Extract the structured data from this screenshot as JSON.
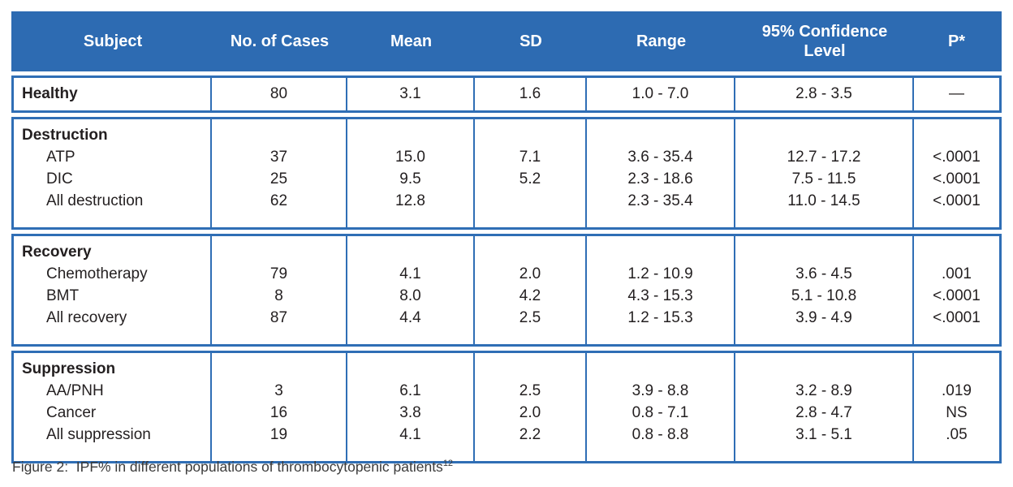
{
  "colors": {
    "header_bg": "#2d6bb2",
    "border_blue": "#2f6eb5",
    "body_text": "#231f20",
    "header_text": "#ffffff"
  },
  "table": {
    "headers": [
      "Subject",
      "No. of Cases",
      "Mean",
      "SD",
      "Range",
      "95% Confidence Level",
      "P*"
    ],
    "sections": [
      {
        "name": "healthy",
        "rows": [
          {
            "label": "Healthy",
            "cases": "80",
            "mean": "3.1",
            "sd": "1.6",
            "range": "1.0 - 7.0",
            "ci": "2.8 - 3.5",
            "p": "—"
          }
        ]
      },
      {
        "name": "destruction",
        "group": "Destruction",
        "rows": [
          {
            "label": "ATP",
            "cases": "37",
            "mean": "15.0",
            "sd": "7.1",
            "range": "3.6 - 35.4",
            "ci": "12.7 - 17.2",
            "p": "<.0001"
          },
          {
            "label": "DIC",
            "cases": "25",
            "mean": "9.5",
            "sd": "5.2",
            "range": "2.3 - 18.6",
            "ci": "7.5 - 11.5",
            "p": "<.0001"
          },
          {
            "label": "All destruction",
            "cases": "62",
            "mean": "12.8",
            "sd": "",
            "range": "2.3 - 35.4",
            "ci": "11.0 - 14.5",
            "p": "<.0001"
          }
        ]
      },
      {
        "name": "recovery",
        "group": "Recovery",
        "rows": [
          {
            "label": "Chemotherapy",
            "cases": "79",
            "mean": "4.1",
            "sd": "2.0",
            "range": "1.2 - 10.9",
            "ci": "3.6 - 4.5",
            "p": ".001"
          },
          {
            "label": "BMT",
            "cases": "8",
            "mean": "8.0",
            "sd": "4.2",
            "range": "4.3 - 15.3",
            "ci": "5.1 - 10.8",
            "p": "<.0001"
          },
          {
            "label": "All recovery",
            "cases": "87",
            "mean": "4.4",
            "sd": "2.5",
            "range": "1.2 - 15.3",
            "ci": "3.9 - 4.9",
            "p": "<.0001"
          }
        ]
      },
      {
        "name": "suppression",
        "group": "Suppression",
        "rows": [
          {
            "label": "AA/PNH",
            "cases": "3",
            "mean": "6.1",
            "sd": "2.5",
            "range": "3.9 - 8.8",
            "ci": "3.2 - 8.9",
            "p": ".019"
          },
          {
            "label": "Cancer",
            "cases": "16",
            "mean": "3.8",
            "sd": "2.0",
            "range": "0.8 - 7.1",
            "ci": "2.8 - 4.7",
            "p": "NS"
          },
          {
            "label": "All suppression",
            "cases": "19",
            "mean": "4.1",
            "sd": "2.2",
            "range": "0.8 - 8.8",
            "ci": "3.1 - 5.1",
            "p": ".05"
          }
        ]
      }
    ]
  },
  "caption": {
    "text": "Figure 2:  IPF% in different populations of thrombocytopenic patients",
    "superscript": "12"
  }
}
